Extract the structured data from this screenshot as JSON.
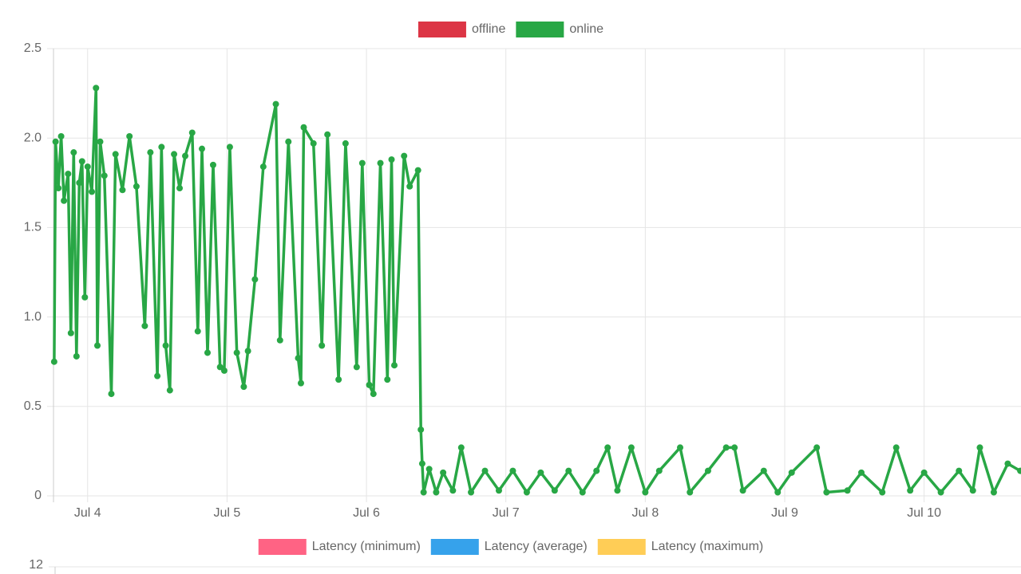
{
  "chart_data": [
    {
      "type": "line",
      "series": [
        {
          "name": "offline",
          "color": "#dc3545",
          "values": [
            null,
            null,
            null,
            null,
            null,
            null,
            null,
            null,
            null,
            null,
            null,
            null,
            null,
            null,
            null,
            null,
            null,
            null,
            null,
            null,
            null,
            null,
            null,
            null,
            null,
            null,
            null,
            null,
            null,
            null,
            null,
            null,
            null,
            null,
            null,
            null,
            null,
            null,
            null,
            null,
            null,
            null,
            null,
            null,
            null,
            null,
            null,
            null,
            null,
            null,
            null,
            null,
            null,
            null,
            null,
            null,
            null,
            null,
            null,
            null,
            null,
            null,
            null,
            null,
            null,
            null,
            null,
            null,
            null,
            null,
            null,
            null,
            null,
            null,
            null,
            null,
            null,
            null,
            null,
            null,
            null,
            null,
            null,
            null,
            null,
            null,
            null,
            null,
            null,
            null,
            null,
            null,
            null,
            null,
            null,
            null,
            null,
            null,
            null,
            null,
            null,
            null,
            null,
            null,
            null,
            null,
            null,
            null,
            null,
            null,
            null,
            null,
            null,
            null
          ]
        },
        {
          "name": "online",
          "color": "#28a745",
          "values": [
            0.75,
            1.98,
            1.72,
            2.01,
            1.65,
            1.8,
            0.91,
            1.92,
            0.78,
            1.75,
            1.87,
            1.11,
            1.84,
            1.7,
            2.28,
            0.84,
            1.98,
            1.79,
            0.57,
            1.91,
            1.71,
            2.01,
            1.73,
            0.95,
            1.92,
            0.67,
            1.95,
            0.84,
            0.59,
            1.91,
            1.72,
            1.9,
            2.03,
            0.92,
            1.94,
            0.8,
            1.85,
            0.72,
            0.7,
            1.95,
            0.8,
            0.61,
            0.81,
            1.21,
            1.84,
            2.19,
            0.87,
            1.98,
            0.77,
            0.63,
            2.06,
            1.97,
            0.84,
            2.02,
            0.65,
            1.97,
            0.72,
            1.86,
            0.62,
            0.57,
            1.86,
            0.65,
            1.88,
            0.73,
            1.9,
            1.73,
            1.82,
            0.37,
            0.18,
            0.02,
            0.15,
            0.02,
            0.13,
            0.03,
            0.27,
            0.02,
            0.14,
            0.03,
            0.14,
            0.02,
            0.13,
            0.03,
            0.14,
            0.02,
            0.14,
            0.27,
            0.03,
            0.27,
            0.02,
            0.14,
            0.27,
            0.02,
            0.14,
            0.27,
            0.27,
            0.03,
            0.14,
            0.02,
            0.13,
            0.27,
            0.02,
            0.03,
            0.13,
            0.02,
            0.27,
            0.03,
            0.13,
            0.02,
            0.14,
            0.03,
            0.27,
            0.02,
            0.18,
            0.14
          ]
        }
      ],
      "x": [
        3.76,
        3.77,
        3.79,
        3.81,
        3.83,
        3.86,
        3.88,
        3.9,
        3.92,
        3.94,
        3.96,
        3.98,
        4.0,
        4.03,
        4.06,
        4.07,
        4.09,
        4.12,
        4.17,
        4.2,
        4.25,
        4.3,
        4.35,
        4.41,
        4.45,
        4.5,
        4.53,
        4.56,
        4.59,
        4.62,
        4.66,
        4.7,
        4.75,
        4.79,
        4.82,
        4.86,
        4.9,
        4.95,
        4.98,
        5.02,
        5.07,
        5.12,
        5.15,
        5.2,
        5.26,
        5.35,
        5.38,
        5.44,
        5.51,
        5.53,
        5.55,
        5.62,
        5.68,
        5.72,
        5.8,
        5.85,
        5.93,
        5.97,
        6.02,
        6.05,
        6.1,
        6.15,
        6.18,
        6.2,
        6.27,
        6.31,
        6.37,
        6.39,
        6.4,
        6.41,
        6.45,
        6.5,
        6.55,
        6.62,
        6.68,
        6.75,
        6.85,
        6.95,
        7.05,
        7.15,
        7.25,
        7.35,
        7.45,
        7.55,
        7.65,
        7.73,
        7.8,
        7.9,
        8.0,
        8.1,
        8.25,
        8.32,
        8.45,
        8.58,
        8.64,
        8.7,
        8.85,
        8.95,
        9.05,
        9.23,
        9.3,
        9.45,
        9.55,
        9.7,
        9.8,
        9.9,
        10.0,
        10.12,
        10.25,
        10.35,
        10.4,
        10.5,
        10.6,
        10.69
      ],
      "xlim": [
        3.755,
        10.695
      ],
      "xticks": [
        {
          "value": 4,
          "label": "Jul 4"
        },
        {
          "value": 5,
          "label": "Jul 5"
        },
        {
          "value": 6,
          "label": "Jul 6"
        },
        {
          "value": 7,
          "label": "Jul 7"
        },
        {
          "value": 8,
          "label": "Jul 8"
        },
        {
          "value": 9,
          "label": "Jul 9"
        },
        {
          "value": 10,
          "label": "Jul 10"
        }
      ],
      "ylim": [
        0,
        2.5
      ],
      "yticks": [
        0,
        0.5,
        {
          "value": 1,
          "label": "1.0"
        },
        {
          "value": 1.5,
          "label": "1.5"
        },
        {
          "value": 2,
          "label": "2.0"
        },
        2.5
      ],
      "grid": true,
      "legend": "top"
    },
    {
      "type": "line",
      "series": [
        {
          "name": "Latency (minimum)",
          "color": "#ff6384",
          "values": []
        },
        {
          "name": "Latency (average)",
          "color": "#36a2eb",
          "values": []
        },
        {
          "name": "Latency (maximum)",
          "color": "#ffcd56",
          "values": []
        }
      ],
      "yticks": [
        12
      ],
      "grid": true,
      "legend": "top"
    }
  ]
}
